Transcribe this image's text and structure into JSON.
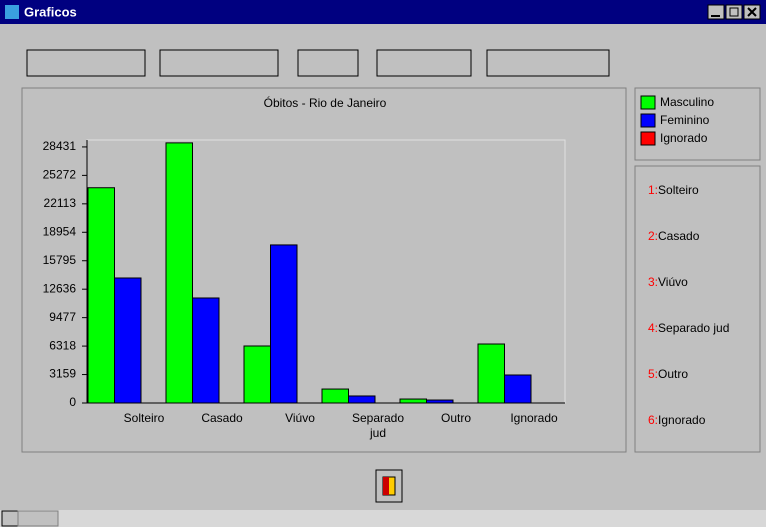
{
  "window_title": "Graficos",
  "chart_data": {
    "type": "bar",
    "title": "Óbitos - Rio de Janeiro",
    "categories": [
      "Solteiro",
      "Casado",
      "Viúvo",
      "Separado jud",
      "Outro",
      "Ignorado"
    ],
    "series": [
      {
        "name": "Masculino",
        "color": "#00ff00",
        "values": [
          23900,
          28880,
          6330,
          1550,
          440,
          6550
        ]
      },
      {
        "name": "Feminino",
        "color": "#0000ff",
        "values": [
          13880,
          11660,
          17550,
          780,
          330,
          3110
        ]
      },
      {
        "name": "Ignorado",
        "color": "#ff0000",
        "values": [
          0,
          0,
          0,
          0,
          0,
          0
        ]
      }
    ],
    "ylim": [
      0,
      29200
    ],
    "yticks": [
      0,
      3159,
      6318,
      9477,
      12636,
      15795,
      18954,
      22113,
      25272,
      28431
    ]
  },
  "key": [
    {
      "number": "1:",
      "label": "Solteiro"
    },
    {
      "number": "2:",
      "label": "Casado"
    },
    {
      "number": "3:",
      "label": "Viúvo"
    },
    {
      "number": "4:",
      "label": "Separado jud"
    },
    {
      "number": "5:",
      "label": "Outro"
    },
    {
      "number": "6:",
      "label": "Ignorado"
    }
  ]
}
